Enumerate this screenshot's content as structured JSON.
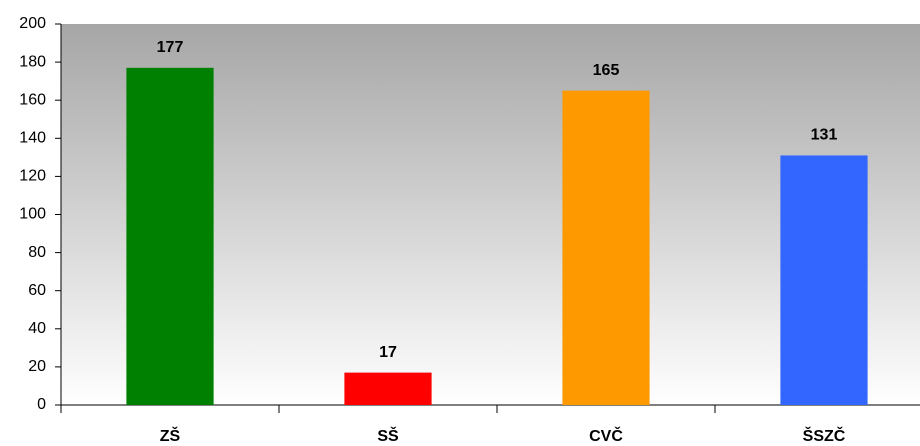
{
  "chart_data": {
    "type": "bar",
    "categories": [
      "ZŠ",
      "SŠ",
      "CVČ",
      "ŠSZČ"
    ],
    "values": [
      177,
      17,
      165,
      131
    ],
    "colors": [
      "#008000",
      "#ff0000",
      "#ff9900",
      "#3366ff"
    ],
    "ylim": [
      0,
      200
    ],
    "yticks": [
      0,
      20,
      40,
      60,
      80,
      100,
      120,
      140,
      160,
      180,
      200
    ]
  }
}
